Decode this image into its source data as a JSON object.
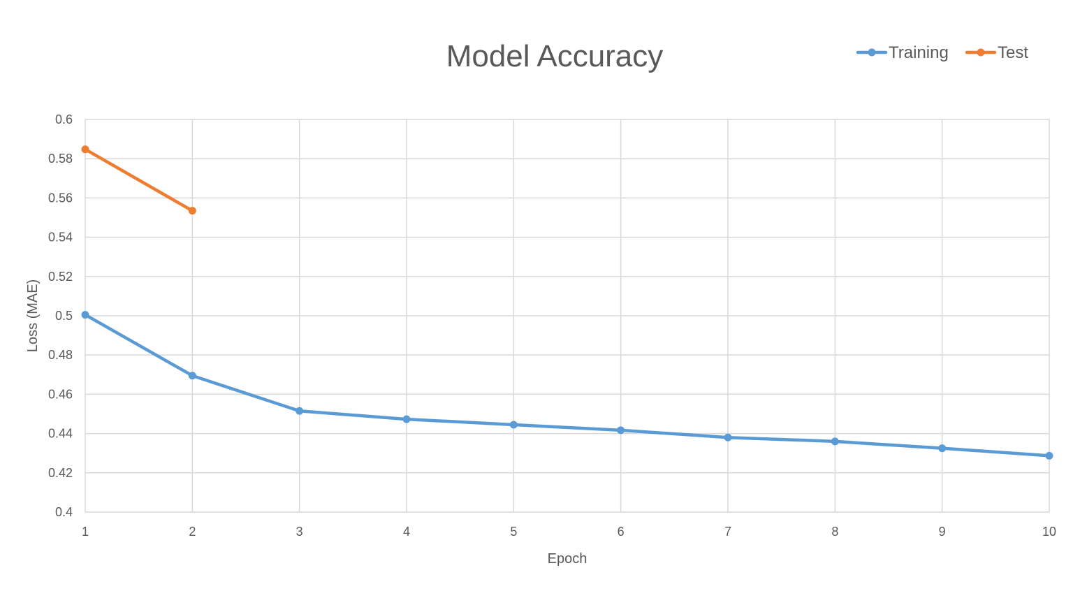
{
  "chart_data": {
    "type": "line",
    "title": "Model Accuracy",
    "xlabel": "Epoch",
    "ylabel": "Loss (MAE)",
    "x": [
      1,
      2,
      3,
      4,
      5,
      6,
      7,
      8,
      9,
      10
    ],
    "x_tick_labels": [
      "1",
      "2",
      "3",
      "4",
      "5",
      "6",
      "7",
      "8",
      "9",
      "10"
    ],
    "xlim": [
      1,
      10
    ],
    "ylim": [
      0.4,
      0.6
    ],
    "y_ticks": [
      0.4,
      0.42,
      0.44,
      0.46,
      0.48,
      0.5,
      0.52,
      0.54,
      0.56,
      0.58,
      0.6
    ],
    "y_tick_labels": [
      "0.4",
      "0.42",
      "0.44",
      "0.46",
      "0.48",
      "0.5",
      "0.52",
      "0.54",
      "0.56",
      "0.58",
      "0.6"
    ],
    "grid": true,
    "legend_position": "top-right",
    "series": [
      {
        "name": "Training",
        "color": "#5B9BD5",
        "x": [
          1,
          2,
          3,
          4,
          5,
          6,
          7,
          8,
          9,
          10
        ],
        "values": [
          0.5005,
          0.4695,
          0.4515,
          0.4473,
          0.4445,
          0.4417,
          0.438,
          0.436,
          0.4325,
          0.4287
        ]
      },
      {
        "name": "Test",
        "color": "#ED7D31",
        "x": [
          1,
          2
        ],
        "values": [
          0.5848,
          0.5535
        ]
      }
    ]
  }
}
